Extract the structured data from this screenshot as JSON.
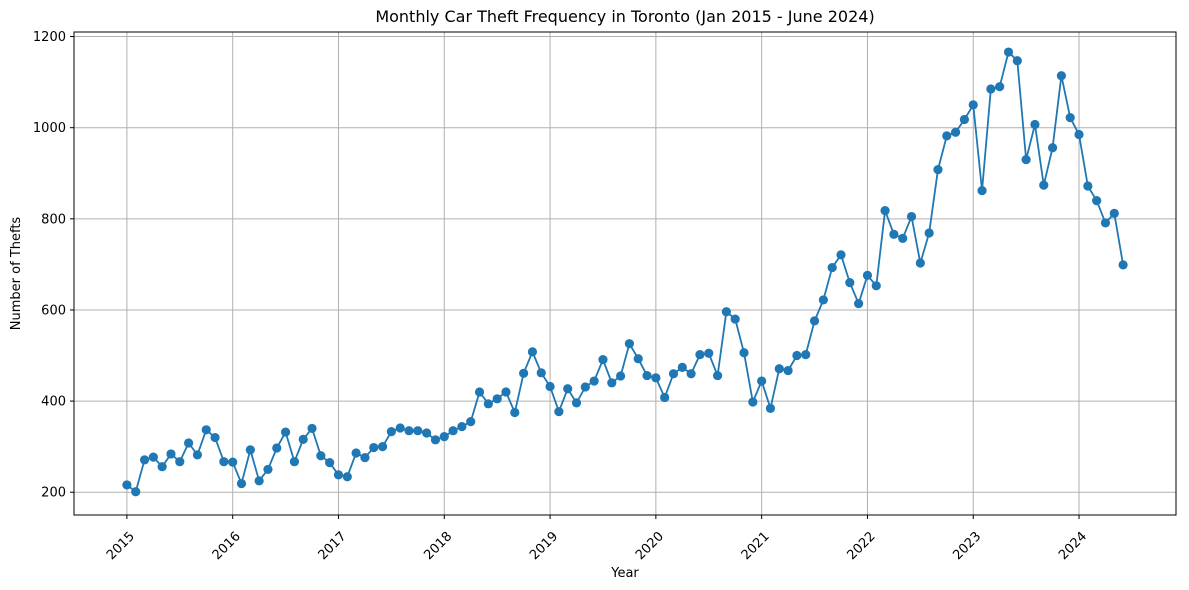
{
  "chart_data": {
    "type": "line",
    "title": "Monthly Car Theft Frequency in Toronto (Jan 2015 - June 2024)",
    "xlabel": "Year",
    "ylabel": "Number of Thefts",
    "x_ticks": [
      "2015",
      "2016",
      "2017",
      "2018",
      "2019",
      "2020",
      "2021",
      "2022",
      "2023",
      "2024"
    ],
    "y_ticks": [
      200,
      400,
      600,
      800,
      1000,
      1200
    ],
    "xlim": [
      "2014-07",
      "2024-12"
    ],
    "ylim": [
      150,
      1210
    ],
    "grid": true,
    "marker": "circle",
    "color": "#1f77b4",
    "series": [
      {
        "x": [
          "2015-01",
          "2015-02",
          "2015-03",
          "2015-04",
          "2015-05",
          "2015-06",
          "2015-07",
          "2015-08",
          "2015-09",
          "2015-10",
          "2015-11",
          "2015-12",
          "2016-01",
          "2016-02",
          "2016-03",
          "2016-04",
          "2016-05",
          "2016-06",
          "2016-07",
          "2016-08",
          "2016-09",
          "2016-10",
          "2016-11",
          "2016-12",
          "2017-01",
          "2017-02",
          "2017-03",
          "2017-04",
          "2017-05",
          "2017-06",
          "2017-07",
          "2017-08",
          "2017-09",
          "2017-10",
          "2017-11",
          "2017-12",
          "2018-01",
          "2018-02",
          "2018-03",
          "2018-04",
          "2018-05",
          "2018-06",
          "2018-07",
          "2018-08",
          "2018-09",
          "2018-10",
          "2018-11",
          "2018-12",
          "2019-01",
          "2019-02",
          "2019-03",
          "2019-04",
          "2019-05",
          "2019-06",
          "2019-07",
          "2019-08",
          "2019-09",
          "2019-10",
          "2019-11",
          "2019-12",
          "2020-01",
          "2020-02",
          "2020-03",
          "2020-04",
          "2020-05",
          "2020-06",
          "2020-07",
          "2020-08",
          "2020-09",
          "2020-10",
          "2020-11",
          "2020-12",
          "2021-01",
          "2021-02",
          "2021-03",
          "2021-04",
          "2021-05",
          "2021-06",
          "2021-07",
          "2021-08",
          "2021-09",
          "2021-10",
          "2021-11",
          "2021-12",
          "2022-01",
          "2022-02",
          "2022-03",
          "2022-04",
          "2022-05",
          "2022-06",
          "2022-07",
          "2022-08",
          "2022-09",
          "2022-10",
          "2022-11",
          "2022-12",
          "2023-01",
          "2023-02",
          "2023-03",
          "2023-04",
          "2023-05",
          "2023-06",
          "2023-07",
          "2023-08",
          "2023-09",
          "2023-10",
          "2023-11",
          "2023-12",
          "2024-01",
          "2024-02",
          "2024-03",
          "2024-04",
          "2024-05",
          "2024-06"
        ],
        "y": [
          216,
          201,
          271,
          277,
          256,
          284,
          267,
          308,
          282,
          337,
          320,
          267,
          266,
          219,
          293,
          225,
          250,
          297,
          332,
          267,
          316,
          340,
          280,
          265,
          238,
          234,
          286,
          276,
          298,
          300,
          333,
          341,
          335,
          335,
          330,
          315,
          322,
          335,
          344,
          355,
          420,
          394,
          405,
          420,
          375,
          461,
          508,
          462,
          432,
          377,
          427,
          396,
          431,
          444,
          491,
          440,
          455,
          526,
          493,
          456,
          451,
          408,
          460,
          474,
          460,
          502,
          505,
          456,
          596,
          580,
          506,
          398,
          444,
          384,
          471,
          467,
          500,
          502,
          576,
          622,
          693,
          721,
          660,
          614,
          676,
          653,
          818,
          766,
          757,
          805,
          703,
          769,
          908,
          982,
          990,
          1018,
          1050,
          862,
          1085,
          1090,
          1166,
          1147,
          930,
          1007,
          874,
          956,
          1114,
          1022,
          985,
          872,
          840,
          791,
          812,
          699
        ]
      }
    ]
  }
}
